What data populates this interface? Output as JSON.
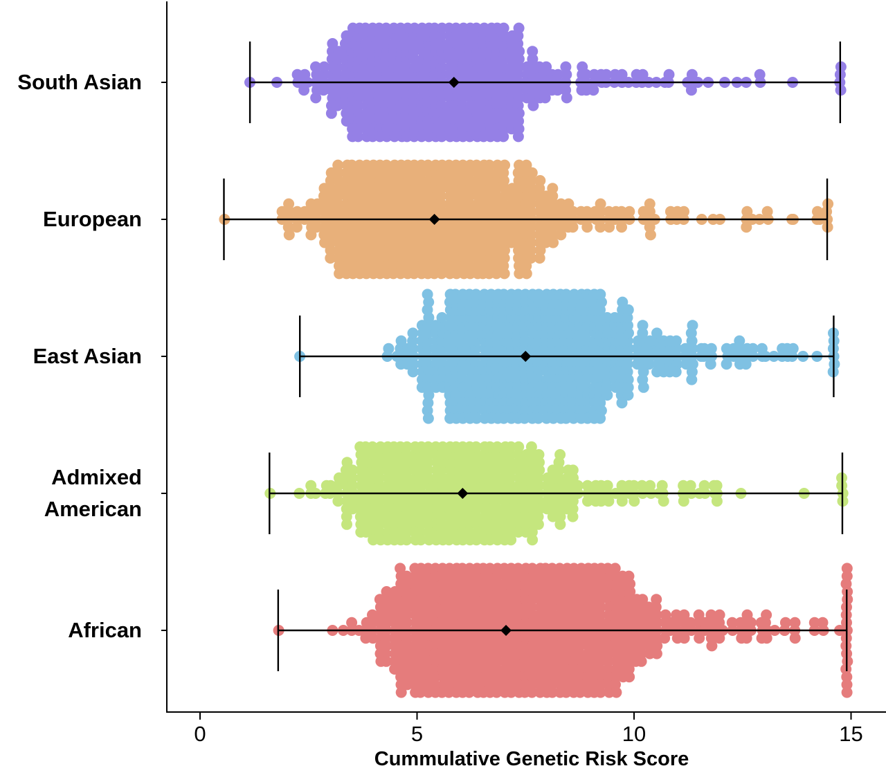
{
  "chart_data": {
    "type": "scatter",
    "subtype": "horizontal beeswarm with mean and range",
    "xlabel": "Cummulative Genetic Risk Score",
    "ylabel": "",
    "xlim": [
      -0.7,
      15.7
    ],
    "x_ticks": [
      0,
      5,
      10,
      15
    ],
    "x_tick_labels": [
      "0",
      "5",
      "10",
      "15"
    ],
    "grid": false,
    "legend": "none",
    "series": [
      {
        "name": "South Asian",
        "label_lines": [
          "South Asian"
        ],
        "color": "#9580E6",
        "mean": 5.85,
        "min": 1.15,
        "max": 14.75,
        "center_value": 5.0,
        "spread": 1.7,
        "swarm_max_offset": 0.9,
        "n_dots": 700,
        "seed": 11
      },
      {
        "name": "European",
        "label_lines": [
          "European"
        ],
        "color": "#E8B07A",
        "mean": 5.4,
        "min": 0.55,
        "max": 14.45,
        "center_value": 5.0,
        "spread": 1.9,
        "swarm_max_offset": 0.88,
        "n_dots": 800,
        "seed": 23
      },
      {
        "name": "East Asian",
        "label_lines": [
          "East Asian"
        ],
        "color": "#7FC1E3",
        "mean": 7.5,
        "min": 2.3,
        "max": 14.6,
        "center_value": 7.3,
        "spread": 1.7,
        "swarm_max_offset": 1.0,
        "n_dots": 1000,
        "seed": 37
      },
      {
        "name": "Admixed American",
        "label_lines": [
          "Admixed",
          "American"
        ],
        "color": "#C5E67E",
        "mean": 6.05,
        "min": 1.6,
        "max": 14.8,
        "center_value": 5.5,
        "spread": 1.8,
        "swarm_max_offset": 0.78,
        "n_dots": 650,
        "seed": 41
      },
      {
        "name": "African",
        "label_lines": [
          "African"
        ],
        "color": "#E57C7C",
        "mean": 7.05,
        "min": 1.8,
        "max": 14.9,
        "center_value": 6.8,
        "spread": 2.0,
        "swarm_max_offset": 0.95,
        "n_dots": 1300,
        "seed": 53
      }
    ]
  }
}
